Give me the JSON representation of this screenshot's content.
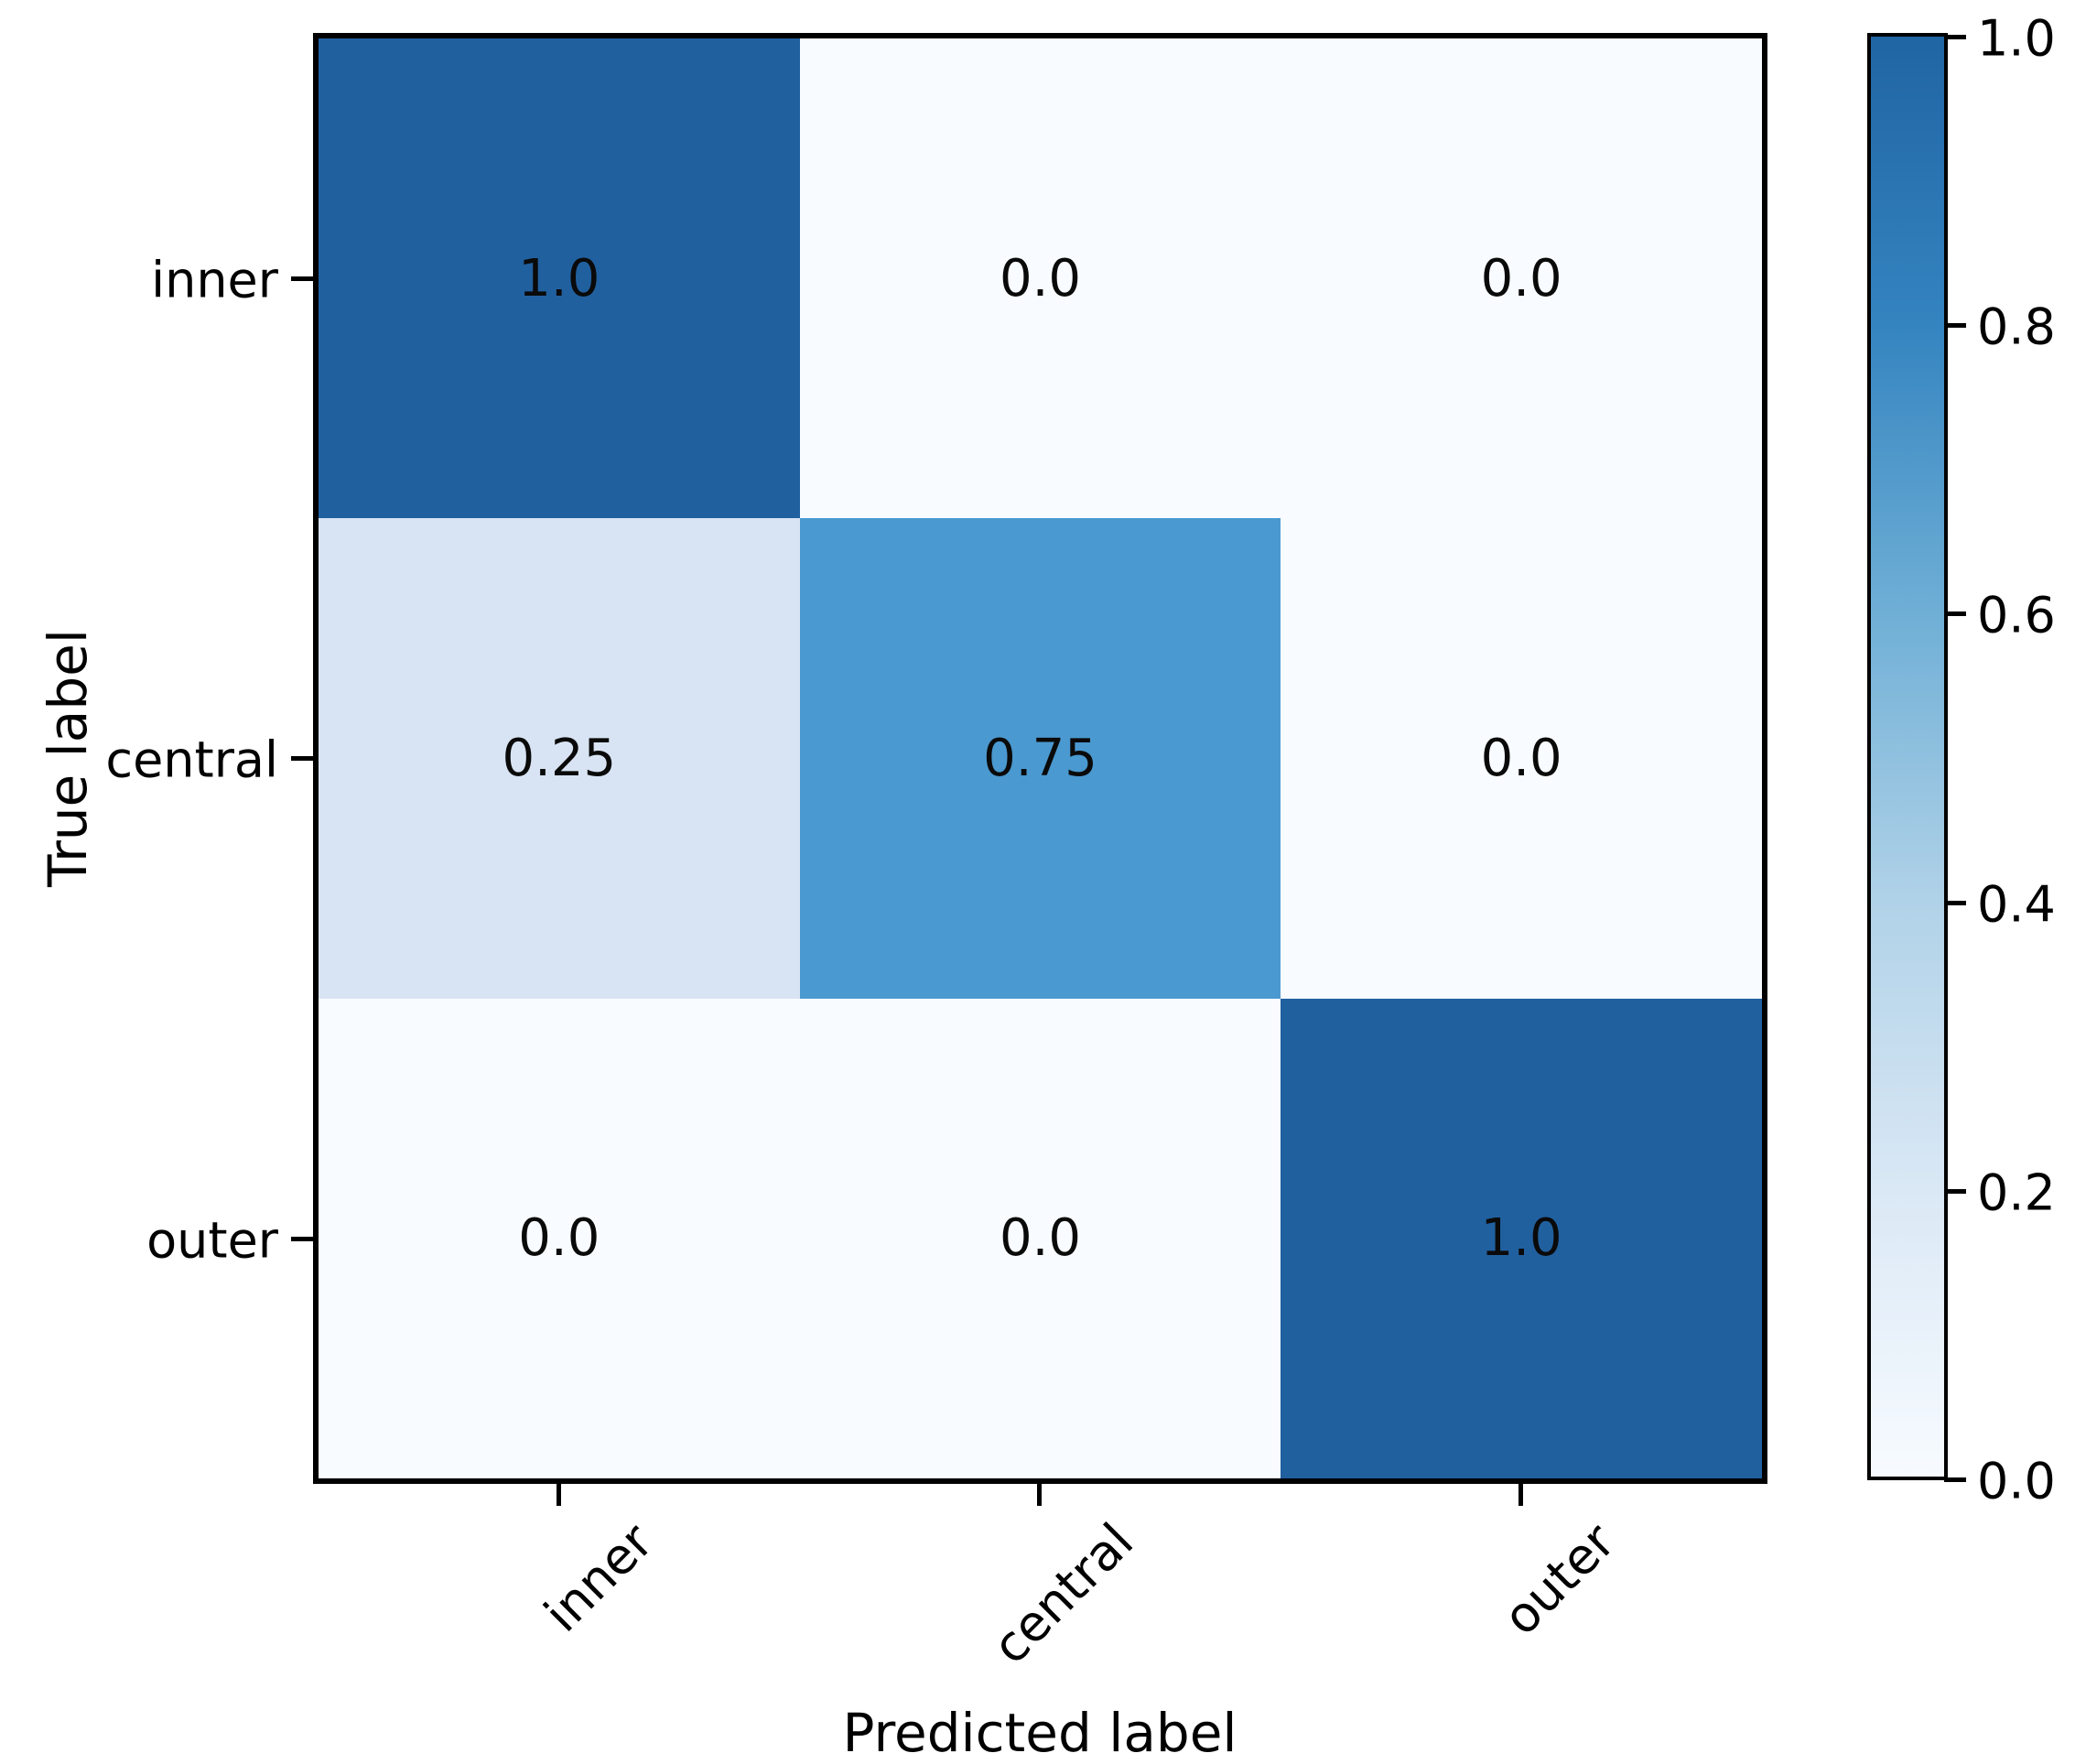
{
  "chart_data": {
    "type": "heatmap",
    "title": "",
    "xlabel": "Predicted label",
    "ylabel": "True label",
    "x_categories": [
      "inner",
      "central",
      "outer"
    ],
    "y_categories": [
      "inner",
      "central",
      "outer"
    ],
    "matrix": [
      [
        1.0,
        0.0,
        0.0
      ],
      [
        0.25,
        0.75,
        0.0
      ],
      [
        0.0,
        0.0,
        1.0
      ]
    ],
    "cells": [
      {
        "value": "1.0",
        "color": "#21609f"
      },
      {
        "value": "0.0",
        "color": "#f8fbff"
      },
      {
        "value": "0.0",
        "color": "#f8fbff"
      },
      {
        "value": "0.25",
        "color": "#d8e4f3"
      },
      {
        "value": "0.75",
        "color": "#4a99d0"
      },
      {
        "value": "0.0",
        "color": "#f8fbff"
      },
      {
        "value": "0.0",
        "color": "#f8fbff"
      },
      {
        "value": "0.0",
        "color": "#f8fbff"
      },
      {
        "value": "1.0",
        "color": "#21609f"
      }
    ],
    "colorbar": {
      "ticks": [
        "1.0",
        "0.8",
        "0.6",
        "0.4",
        "0.2",
        "0.0"
      ],
      "range": [
        0.0,
        1.0
      ],
      "gradient": [
        "#f7fbff 0%",
        "#dae8f5 20%",
        "#b0d2e8 40%",
        "#6fafd6 60%",
        "#3484c0 80%",
        "#2065a3 100%"
      ]
    },
    "grid": "off",
    "value_text_color": "#0a0a0a"
  }
}
